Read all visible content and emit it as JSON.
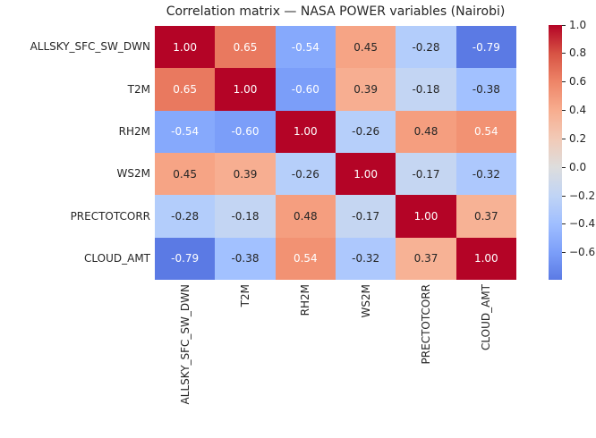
{
  "title": "Correlation matrix — NASA POWER variables (Nairobi)",
  "colors": {
    "background": "#ffffff",
    "text": "#262626",
    "annotation_light": "#ffffff",
    "annotation_dark": "#262626",
    "diagonal_max_red": "#B40426",
    "min_blue": "#5B7AE4"
  },
  "chart_data": {
    "type": "heatmap",
    "title": "Correlation matrix — NASA POWER variables (Nairobi)",
    "colormap": "coolwarm",
    "vmin": -0.79,
    "vmax": 1.0,
    "center": 0,
    "annotation_format": ".2f",
    "variables": [
      "ALLSKY_SFC_SW_DWN",
      "T2M",
      "RH2M",
      "WS2M",
      "PRECTOTCORR",
      "CLOUD_AMT"
    ],
    "matrix": [
      [
        1.0,
        0.65,
        -0.54,
        0.45,
        -0.28,
        -0.79
      ],
      [
        0.65,
        1.0,
        -0.6,
        0.39,
        -0.18,
        -0.38
      ],
      [
        -0.54,
        -0.6,
        1.0,
        -0.26,
        0.48,
        0.54
      ],
      [
        0.45,
        0.39,
        -0.26,
        1.0,
        -0.17,
        -0.32
      ],
      [
        -0.28,
        -0.18,
        0.48,
        -0.17,
        1.0,
        0.37
      ],
      [
        -0.79,
        -0.38,
        0.54,
        -0.32,
        0.37,
        1.0
      ]
    ],
    "cell_colors": [
      [
        "#B40426",
        "#E9795F",
        "#86A9FC",
        "#F6A485",
        "#B3CDFB",
        "#5B7AE4"
      ],
      [
        "#E9795F",
        "#B40426",
        "#7B9EF9",
        "#F7AE91",
        "#C3D5F3",
        "#A2C1FF"
      ],
      [
        "#86A9FC",
        "#7B9EF9",
        "#B40426",
        "#B6CFFA",
        "#F59E7F",
        "#F29273"
      ],
      [
        "#F6A485",
        "#F7AE91",
        "#B6CFFA",
        "#B40426",
        "#C5D6F2",
        "#ADC8FD"
      ],
      [
        "#B3CDFB",
        "#C3D5F3",
        "#F59E7F",
        "#C5D6F2",
        "#B40426",
        "#F7B295"
      ],
      [
        "#5B7AE4",
        "#A2C1FF",
        "#F29273",
        "#ADC8FD",
        "#F7B295",
        "#B40426"
      ]
    ],
    "colorbar": {
      "tick_labels": [
        "1.0",
        "0.8",
        "0.6",
        "0.4",
        "0.2",
        "0.0",
        "−0.2",
        "−0.4",
        "−0.6"
      ],
      "tick_values": [
        1.0,
        0.8,
        0.6,
        0.4,
        0.2,
        0.0,
        -0.2,
        -0.4,
        -0.6
      ],
      "gradient": [
        {
          "pos": 0.0,
          "color": "#B40426"
        },
        {
          "pos": 11.2,
          "color": "#D75344"
        },
        {
          "pos": 22.3,
          "color": "#EE8568"
        },
        {
          "pos": 33.5,
          "color": "#F7AD8F"
        },
        {
          "pos": 44.7,
          "color": "#F2CAB7"
        },
        {
          "pos": 55.9,
          "color": "#DDDDDD"
        },
        {
          "pos": 67.0,
          "color": "#C0D4F5"
        },
        {
          "pos": 78.2,
          "color": "#9FBEFF"
        },
        {
          "pos": 89.4,
          "color": "#7B9EF9"
        },
        {
          "pos": 100.0,
          "color": "#5B7AE4"
        }
      ]
    }
  }
}
